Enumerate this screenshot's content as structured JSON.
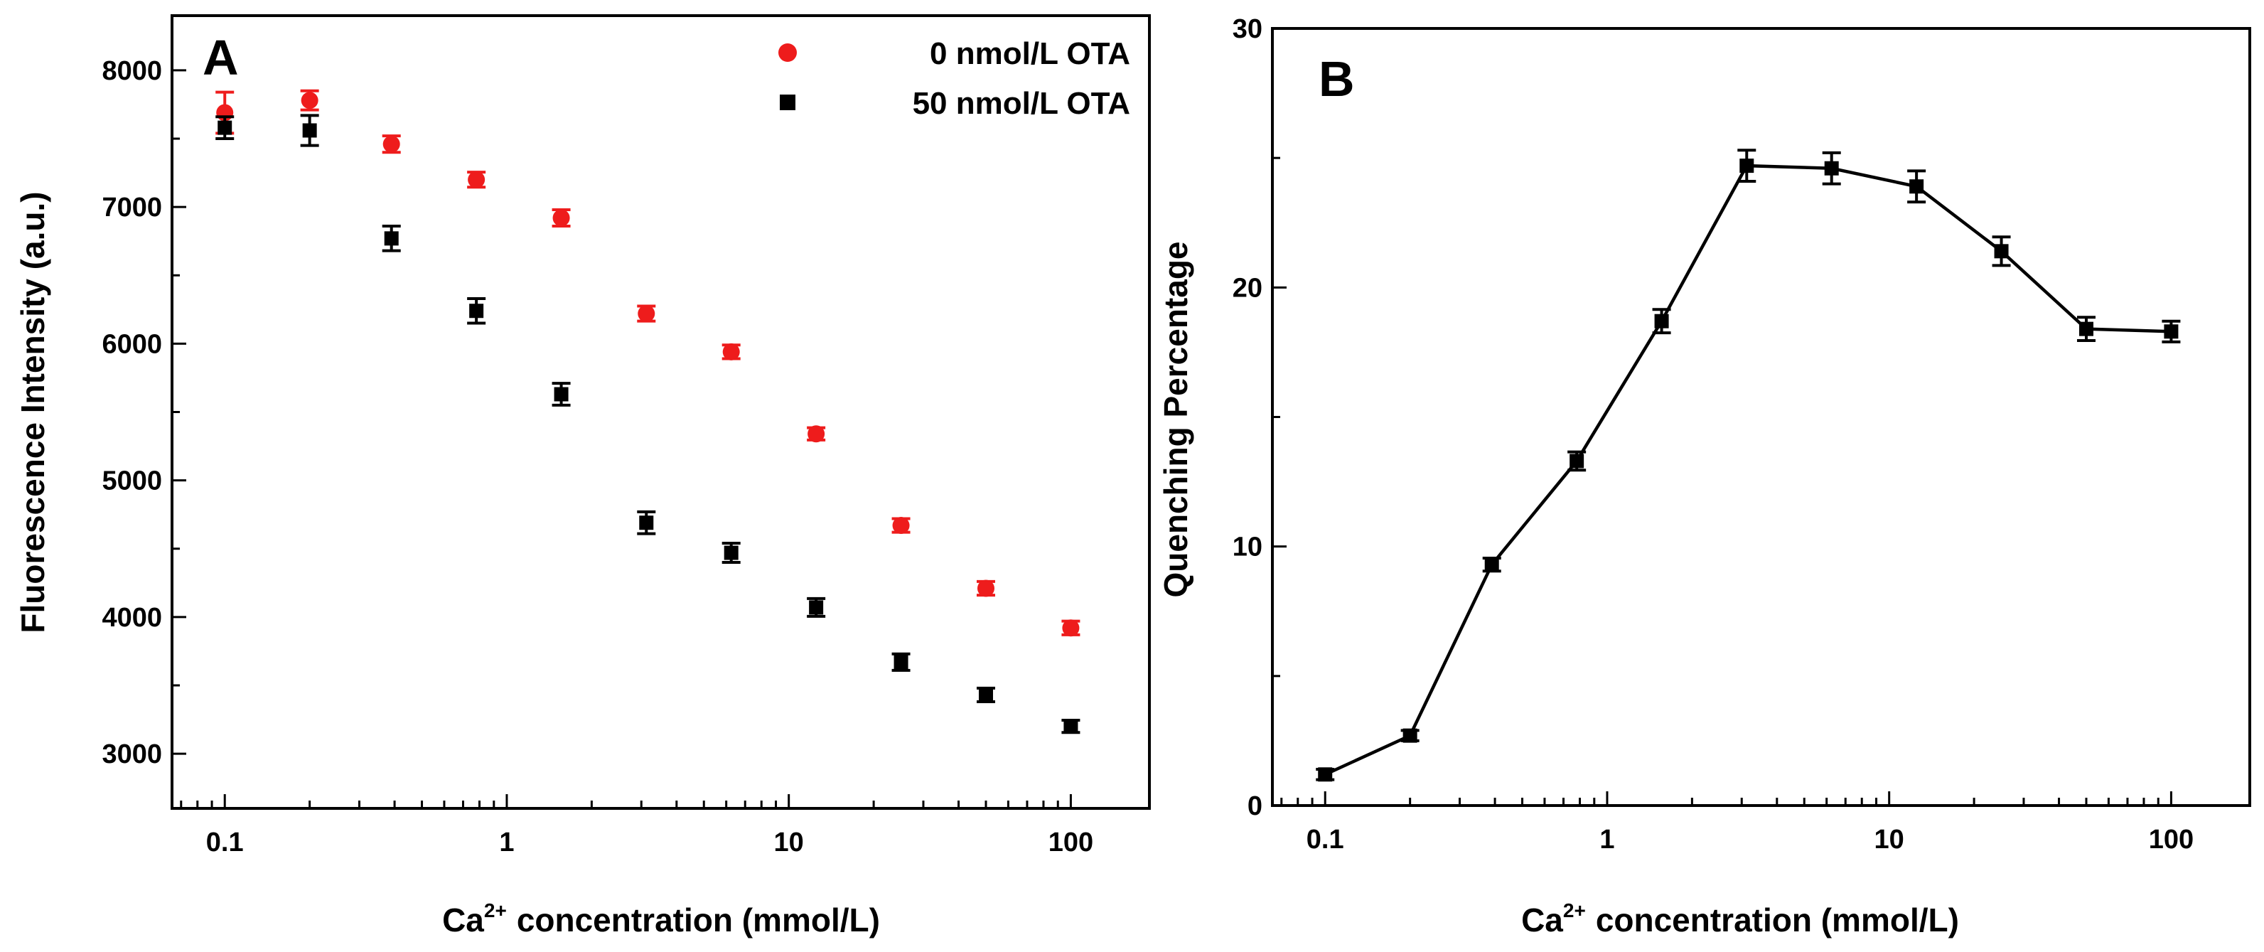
{
  "chart_data": [
    {
      "panel": "A",
      "type": "scatter",
      "x_scale": "log",
      "xlabel": "concentration (mmol/L)",
      "xlabel_prefix": "Ca",
      "xlabel_sup": "2+",
      "ylabel": "Fluorescence Intensity (a.u.)",
      "xlim": [
        0.065,
        190
      ],
      "ylim": [
        2600,
        8400
      ],
      "x_ticks": [
        0.1,
        1,
        10,
        100
      ],
      "x_tick_labels": [
        "0.1",
        "1",
        "10",
        "100"
      ],
      "y_ticks": [
        3000,
        4000,
        5000,
        6000,
        7000,
        8000
      ],
      "y_tick_labels": [
        "3000",
        "4000",
        "5000",
        "6000",
        "7000",
        "8000"
      ],
      "legend_position": "top-right",
      "series": [
        {
          "name": "0 nmol/L OTA",
          "color": "#ee1c1c",
          "marker": "circle",
          "x": [
            0.1,
            0.2,
            0.39,
            0.78,
            1.56,
            3.125,
            6.25,
            12.5,
            25,
            50,
            100
          ],
          "y": [
            7690,
            7780,
            7460,
            7200,
            6920,
            6220,
            5940,
            5340,
            4670,
            4210,
            3920
          ],
          "err": [
            150,
            70,
            60,
            55,
            60,
            55,
            50,
            45,
            50,
            50,
            50
          ]
        },
        {
          "name": "50 nmol/L OTA",
          "color": "#000000",
          "marker": "square",
          "x": [
            0.1,
            0.2,
            0.39,
            0.78,
            1.56,
            3.125,
            6.25,
            12.5,
            25,
            50,
            100
          ],
          "y": [
            7580,
            7560,
            6770,
            6240,
            5630,
            4690,
            4470,
            4070,
            3670,
            3430,
            3200
          ],
          "err": [
            80,
            110,
            90,
            90,
            80,
            80,
            70,
            65,
            60,
            50,
            45
          ]
        }
      ]
    },
    {
      "panel": "B",
      "type": "line",
      "x_scale": "log",
      "xlabel": "concentration (mmol/L)",
      "xlabel_prefix": "Ca",
      "xlabel_sup": "2+",
      "ylabel": "Quenching Percentage",
      "xlim": [
        0.065,
        190
      ],
      "ylim": [
        0,
        30
      ],
      "x_ticks": [
        0.1,
        1,
        10,
        100
      ],
      "x_tick_labels": [
        "0.1",
        "1",
        "10",
        "100"
      ],
      "y_ticks": [
        0,
        10,
        20,
        30
      ],
      "y_tick_labels": [
        "0",
        "10",
        "20",
        "30"
      ],
      "series": [
        {
          "name": "Quenching Percentage",
          "color": "#000000",
          "marker": "square",
          "x": [
            0.1,
            0.2,
            0.39,
            0.78,
            1.56,
            3.125,
            6.25,
            12.5,
            25,
            50,
            100
          ],
          "y": [
            1.2,
            2.7,
            9.3,
            13.3,
            18.7,
            24.7,
            24.6,
            23.9,
            21.4,
            18.4,
            18.3
          ],
          "err": [
            0.2,
            0.2,
            0.25,
            0.35,
            0.45,
            0.6,
            0.6,
            0.6,
            0.55,
            0.45,
            0.4
          ]
        }
      ]
    }
  ]
}
